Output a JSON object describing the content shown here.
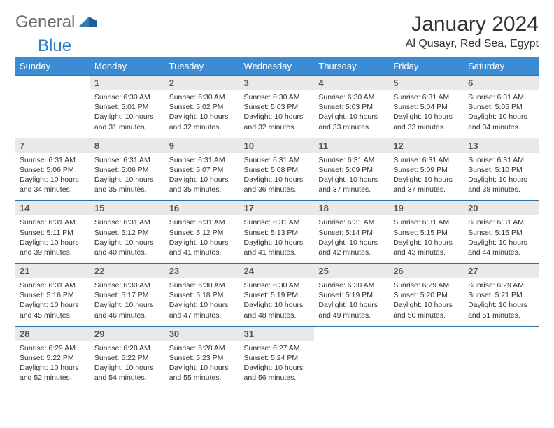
{
  "brand": {
    "part1": "General",
    "part2": "Blue"
  },
  "title": "January 2024",
  "location": "Al Qusayr, Red Sea, Egypt",
  "colors": {
    "header_bg": "#3b8cd4",
    "header_text": "#ffffff",
    "daynum_bg": "#e9e9e9",
    "border": "#2f6fa8",
    "body_text": "#333333",
    "logo_gray": "#6b6b6b",
    "logo_blue": "#2f7bbf"
  },
  "fonts": {
    "title_pt": 30,
    "location_pt": 16,
    "weekday_pt": 13,
    "daynum_pt": 13,
    "cell_pt": 10.5
  },
  "weekdays": [
    "Sunday",
    "Monday",
    "Tuesday",
    "Wednesday",
    "Thursday",
    "Friday",
    "Saturday"
  ],
  "grid": {
    "rows": 5,
    "cols": 7,
    "first_weekday_index": 1,
    "days_in_month": 31
  },
  "days": {
    "1": {
      "sunrise": "6:30 AM",
      "sunset": "5:01 PM",
      "daylight": "10 hours and 31 minutes."
    },
    "2": {
      "sunrise": "6:30 AM",
      "sunset": "5:02 PM",
      "daylight": "10 hours and 32 minutes."
    },
    "3": {
      "sunrise": "6:30 AM",
      "sunset": "5:03 PM",
      "daylight": "10 hours and 32 minutes."
    },
    "4": {
      "sunrise": "6:30 AM",
      "sunset": "5:03 PM",
      "daylight": "10 hours and 33 minutes."
    },
    "5": {
      "sunrise": "6:31 AM",
      "sunset": "5:04 PM",
      "daylight": "10 hours and 33 minutes."
    },
    "6": {
      "sunrise": "6:31 AM",
      "sunset": "5:05 PM",
      "daylight": "10 hours and 34 minutes."
    },
    "7": {
      "sunrise": "6:31 AM",
      "sunset": "5:06 PM",
      "daylight": "10 hours and 34 minutes."
    },
    "8": {
      "sunrise": "6:31 AM",
      "sunset": "5:06 PM",
      "daylight": "10 hours and 35 minutes."
    },
    "9": {
      "sunrise": "6:31 AM",
      "sunset": "5:07 PM",
      "daylight": "10 hours and 35 minutes."
    },
    "10": {
      "sunrise": "6:31 AM",
      "sunset": "5:08 PM",
      "daylight": "10 hours and 36 minutes."
    },
    "11": {
      "sunrise": "6:31 AM",
      "sunset": "5:09 PM",
      "daylight": "10 hours and 37 minutes."
    },
    "12": {
      "sunrise": "6:31 AM",
      "sunset": "5:09 PM",
      "daylight": "10 hours and 37 minutes."
    },
    "13": {
      "sunrise": "6:31 AM",
      "sunset": "5:10 PM",
      "daylight": "10 hours and 38 minutes."
    },
    "14": {
      "sunrise": "6:31 AM",
      "sunset": "5:11 PM",
      "daylight": "10 hours and 39 minutes."
    },
    "15": {
      "sunrise": "6:31 AM",
      "sunset": "5:12 PM",
      "daylight": "10 hours and 40 minutes."
    },
    "16": {
      "sunrise": "6:31 AM",
      "sunset": "5:12 PM",
      "daylight": "10 hours and 41 minutes."
    },
    "17": {
      "sunrise": "6:31 AM",
      "sunset": "5:13 PM",
      "daylight": "10 hours and 41 minutes."
    },
    "18": {
      "sunrise": "6:31 AM",
      "sunset": "5:14 PM",
      "daylight": "10 hours and 42 minutes."
    },
    "19": {
      "sunrise": "6:31 AM",
      "sunset": "5:15 PM",
      "daylight": "10 hours and 43 minutes."
    },
    "20": {
      "sunrise": "6:31 AM",
      "sunset": "5:15 PM",
      "daylight": "10 hours and 44 minutes."
    },
    "21": {
      "sunrise": "6:31 AM",
      "sunset": "5:16 PM",
      "daylight": "10 hours and 45 minutes."
    },
    "22": {
      "sunrise": "6:30 AM",
      "sunset": "5:17 PM",
      "daylight": "10 hours and 46 minutes."
    },
    "23": {
      "sunrise": "6:30 AM",
      "sunset": "5:18 PM",
      "daylight": "10 hours and 47 minutes."
    },
    "24": {
      "sunrise": "6:30 AM",
      "sunset": "5:19 PM",
      "daylight": "10 hours and 48 minutes."
    },
    "25": {
      "sunrise": "6:30 AM",
      "sunset": "5:19 PM",
      "daylight": "10 hours and 49 minutes."
    },
    "26": {
      "sunrise": "6:29 AM",
      "sunset": "5:20 PM",
      "daylight": "10 hours and 50 minutes."
    },
    "27": {
      "sunrise": "6:29 AM",
      "sunset": "5:21 PM",
      "daylight": "10 hours and 51 minutes."
    },
    "28": {
      "sunrise": "6:29 AM",
      "sunset": "5:22 PM",
      "daylight": "10 hours and 52 minutes."
    },
    "29": {
      "sunrise": "6:28 AM",
      "sunset": "5:22 PM",
      "daylight": "10 hours and 54 minutes."
    },
    "30": {
      "sunrise": "6:28 AM",
      "sunset": "5:23 PM",
      "daylight": "10 hours and 55 minutes."
    },
    "31": {
      "sunrise": "6:27 AM",
      "sunset": "5:24 PM",
      "daylight": "10 hours and 56 minutes."
    }
  },
  "labels": {
    "sunrise": "Sunrise:",
    "sunset": "Sunset:",
    "daylight": "Daylight:"
  }
}
